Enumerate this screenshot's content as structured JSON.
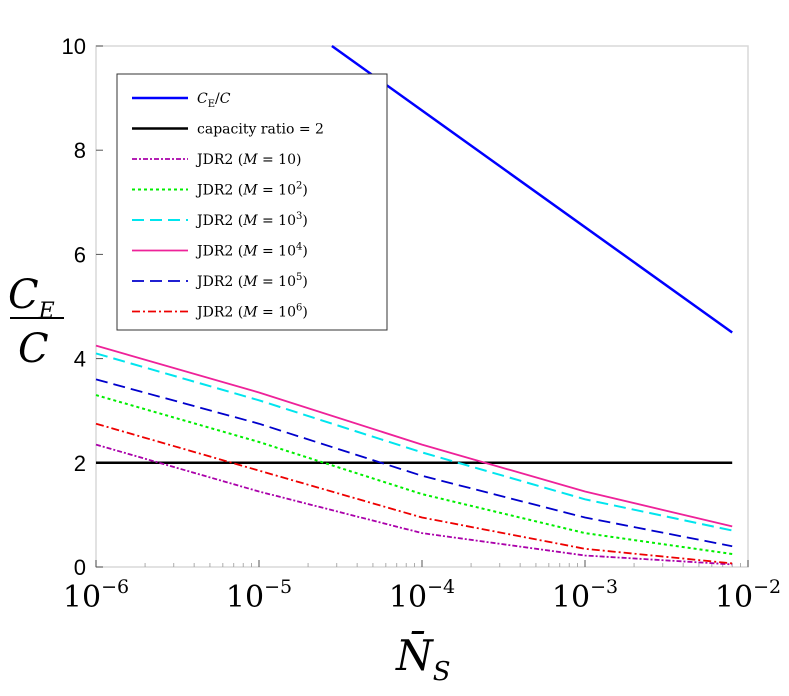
{
  "chart_data": {
    "type": "line",
    "title": "",
    "xscale": "log",
    "xlim": [
      1e-06,
      0.01
    ],
    "ylim": [
      0,
      10
    ],
    "grid": false,
    "legend_position": "top-left",
    "ylabel": {
      "numerator_base": "C",
      "numerator_sub": "E",
      "denominator": "C"
    },
    "xlabel": {
      "base": "N̄",
      "sub": "S"
    },
    "yticks": [
      {
        "value": 0,
        "label": "0"
      },
      {
        "value": 2,
        "label": "2"
      },
      {
        "value": 4,
        "label": "4"
      },
      {
        "value": 6,
        "label": "6"
      },
      {
        "value": 8,
        "label": "8"
      },
      {
        "value": 10,
        "label": "10"
      }
    ],
    "xticks": [
      {
        "value": 1e-06,
        "base": "10",
        "exp": "−6"
      },
      {
        "value": 1e-05,
        "base": "10",
        "exp": "−5"
      },
      {
        "value": 0.0001,
        "base": "10",
        "exp": "−4"
      },
      {
        "value": 0.001,
        "base": "10",
        "exp": "−3"
      },
      {
        "value": 0.01,
        "base": "10",
        "exp": "−2"
      }
    ],
    "series": [
      {
        "name": "C_E/C",
        "legend": {
          "pre": "",
          "it": "C",
          "sub": "E",
          "post": "/",
          "it2": "C",
          "exp": "",
          "close": ""
        },
        "color": "#0000ff",
        "dash": "",
        "width": 2.5,
        "points": [
          [
            2.8e-05,
            10.0
          ],
          [
            0.008,
            4.5
          ]
        ]
      },
      {
        "name": "capacity ratio = 2",
        "legend": {
          "pre": "capacity ratio = 2",
          "it": "",
          "sub": "",
          "post": "",
          "it2": "",
          "exp": "",
          "close": ""
        },
        "color": "#000000",
        "dash": "",
        "width": 2.5,
        "points": [
          [
            1e-06,
            2.0
          ],
          [
            0.008,
            2.0
          ]
        ]
      },
      {
        "name": "JDR2 (M = 10)",
        "legend": {
          "pre": "JDR2 (",
          "it": "M",
          "sub": "",
          "post": " = 10",
          "it2": "",
          "exp": "",
          "close": ")"
        },
        "color": "#aa00aa",
        "dash": "5,2,2,2",
        "width": 1.8,
        "points": [
          [
            1e-06,
            2.35
          ],
          [
            1e-05,
            1.45
          ],
          [
            0.0001,
            0.65
          ],
          [
            0.001,
            0.22
          ],
          [
            0.008,
            0.05
          ]
        ]
      },
      {
        "name": "JDR2 (M = 10^2)",
        "legend": {
          "pre": "JDR2 (",
          "it": "M",
          "sub": "",
          "post": " = 10",
          "it2": "",
          "exp": "2",
          "close": ")"
        },
        "color": "#00ee00",
        "dash": "3,3",
        "width": 2,
        "points": [
          [
            1e-06,
            3.3
          ],
          [
            1e-05,
            2.4
          ],
          [
            0.0001,
            1.4
          ],
          [
            0.001,
            0.65
          ],
          [
            0.008,
            0.25
          ]
        ]
      },
      {
        "name": "JDR2 (M = 10^3)",
        "legend": {
          "pre": "JDR2 (",
          "it": "M",
          "sub": "",
          "post": " = 10",
          "it2": "",
          "exp": "3",
          "close": ")"
        },
        "color": "#00e5ee",
        "dash": "12,6",
        "width": 2,
        "points": [
          [
            1e-06,
            4.1
          ],
          [
            1e-05,
            3.2
          ],
          [
            0.0001,
            2.2
          ],
          [
            0.001,
            1.3
          ],
          [
            0.008,
            0.7
          ]
        ]
      },
      {
        "name": "JDR2 (M = 10^4)",
        "legend": {
          "pre": "JDR2 (",
          "it": "M",
          "sub": "",
          "post": " = 10",
          "it2": "",
          "exp": "4",
          "close": ")"
        },
        "color": "#ee2299",
        "dash": "",
        "width": 1.8,
        "points": [
          [
            1e-06,
            4.25
          ],
          [
            1e-05,
            3.35
          ],
          [
            0.0001,
            2.35
          ],
          [
            0.001,
            1.45
          ],
          [
            0.008,
            0.78
          ]
        ]
      },
      {
        "name": "JDR2 (M = 10^5)",
        "legend": {
          "pre": "JDR2 (",
          "it": "M",
          "sub": "",
          "post": " = 10",
          "it2": "",
          "exp": "5",
          "close": ")"
        },
        "color": "#0000cc",
        "dash": "12,6",
        "width": 1.8,
        "points": [
          [
            1e-06,
            3.6
          ],
          [
            1e-05,
            2.75
          ],
          [
            0.0001,
            1.75
          ],
          [
            0.001,
            0.95
          ],
          [
            0.008,
            0.4
          ]
        ]
      },
      {
        "name": "JDR2 (M = 10^6)",
        "legend": {
          "pre": "JDR2 (",
          "it": "M",
          "sub": "",
          "post": " = 10",
          "it2": "",
          "exp": "6",
          "close": ")"
        },
        "color": "#ee0000",
        "dash": "8,3,2,3",
        "width": 1.8,
        "points": [
          [
            1e-06,
            2.75
          ],
          [
            1e-05,
            1.85
          ],
          [
            0.0001,
            0.95
          ],
          [
            0.001,
            0.35
          ],
          [
            0.008,
            0.07
          ]
        ]
      }
    ]
  }
}
